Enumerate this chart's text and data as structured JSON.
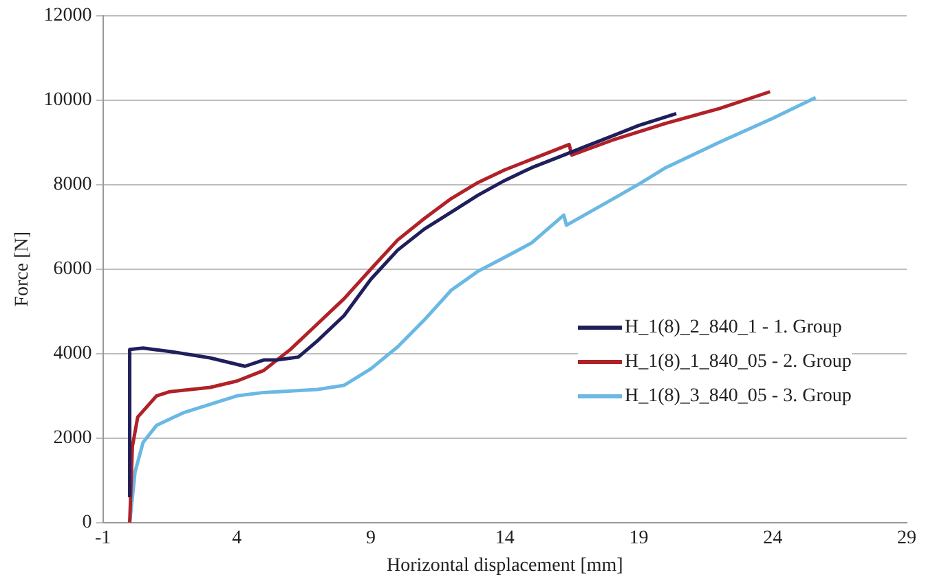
{
  "chart_data": {
    "type": "line",
    "xlabel": "Horizontal displacement [mm]",
    "ylabel": "Force [N]",
    "xlim": [
      -1,
      29
    ],
    "xticks": [
      -1,
      4,
      9,
      14,
      19,
      24,
      29
    ],
    "ylim": [
      0,
      12000
    ],
    "yticks": [
      0,
      2000,
      4000,
      6000,
      8000,
      10000,
      12000
    ],
    "grid": "y",
    "legend": "right",
    "marker": "none",
    "line_style": "solid",
    "series": [
      {
        "name": "H_1(8)_2_840_1 - 1. Group",
        "color": "#1f1f5c",
        "x": [
          0,
          0,
          0.5,
          1.5,
          3,
          4.3,
          5,
          5.5,
          6.3,
          7,
          8,
          9,
          10,
          11,
          12,
          13,
          14,
          15,
          16,
          17,
          18,
          19,
          20.4
        ],
        "values": [
          600,
          4100,
          4130,
          4050,
          3900,
          3700,
          3850,
          3850,
          3920,
          4300,
          4900,
          5760,
          6450,
          6950,
          7350,
          7750,
          8100,
          8400,
          8650,
          8900,
          9150,
          9400,
          9680
        ]
      },
      {
        "name": "H_1(8)_1_840_05 - 2. Group",
        "color": "#b02228",
        "x": [
          0,
          0.1,
          0.3,
          1,
          1.5,
          3,
          4,
          5,
          6,
          7,
          8,
          9,
          10,
          11,
          12,
          13,
          14,
          15,
          16.4,
          16.5,
          18,
          20,
          22,
          23.9
        ],
        "values": [
          0,
          1800,
          2500,
          3000,
          3100,
          3200,
          3350,
          3600,
          4100,
          4700,
          5300,
          6000,
          6690,
          7200,
          7670,
          8050,
          8350,
          8600,
          8950,
          8700,
          9050,
          9450,
          9800,
          10200
        ]
      },
      {
        "name": "H_1(8)_3_840_05 - 3. Group",
        "color": "#6ab8e4",
        "x": [
          0,
          0.2,
          0.5,
          1,
          2,
          3,
          4,
          5,
          7,
          8,
          9,
          10,
          11,
          12,
          13,
          14,
          15,
          16.2,
          16.3,
          18,
          19,
          20,
          22,
          24,
          25.6
        ],
        "values": [
          0,
          1200,
          1900,
          2300,
          2600,
          2800,
          3000,
          3080,
          3150,
          3250,
          3640,
          4160,
          4800,
          5500,
          5950,
          6280,
          6620,
          7280,
          7040,
          7650,
          8010,
          8400,
          9000,
          9570,
          10060
        ]
      }
    ]
  }
}
